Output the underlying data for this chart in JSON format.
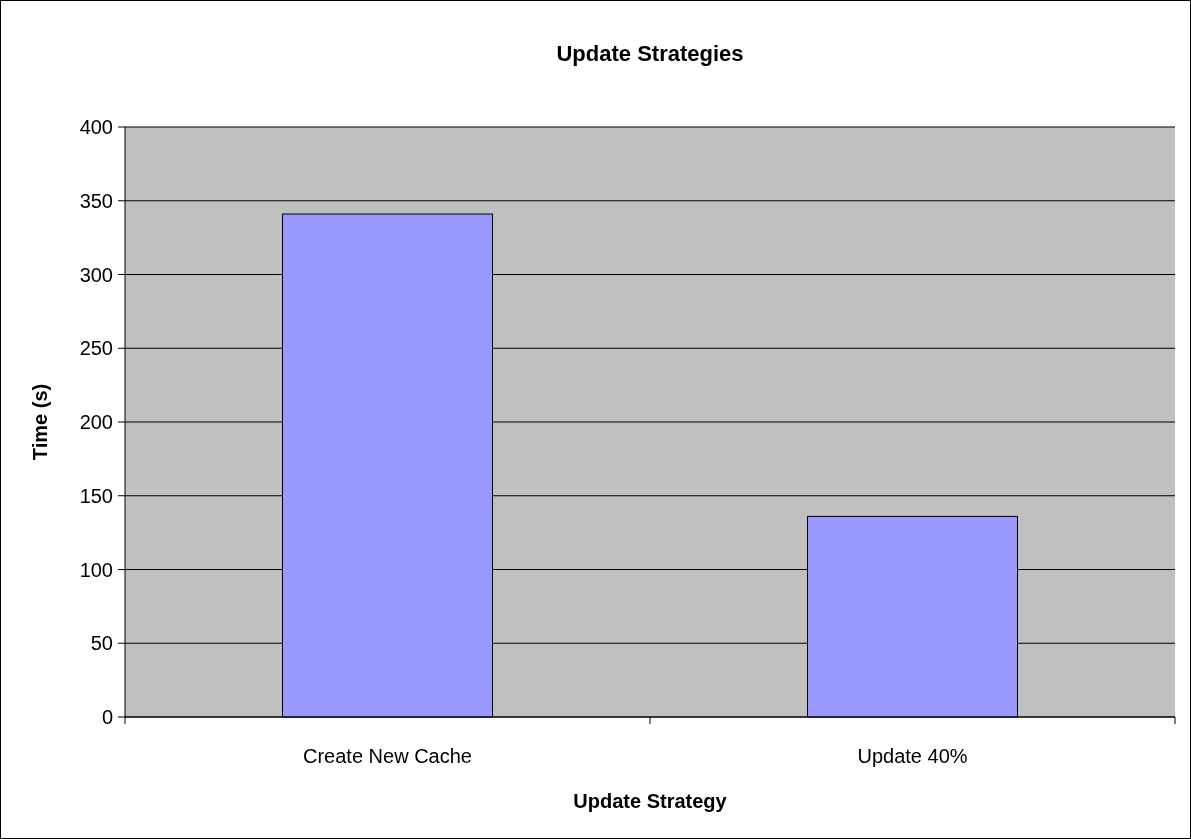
{
  "chart_data": {
    "type": "bar",
    "title": "Update Strategies",
    "xlabel": "Update Strategy",
    "ylabel": "Time (s)",
    "categories": [
      "Create New Cache",
      "Update 40%"
    ],
    "values": [
      341,
      136
    ],
    "color": "#9999ff",
    "ylim": [
      0,
      400
    ],
    "yticks": [
      0,
      50,
      100,
      150,
      200,
      250,
      300,
      350,
      400
    ],
    "grid": "y"
  }
}
